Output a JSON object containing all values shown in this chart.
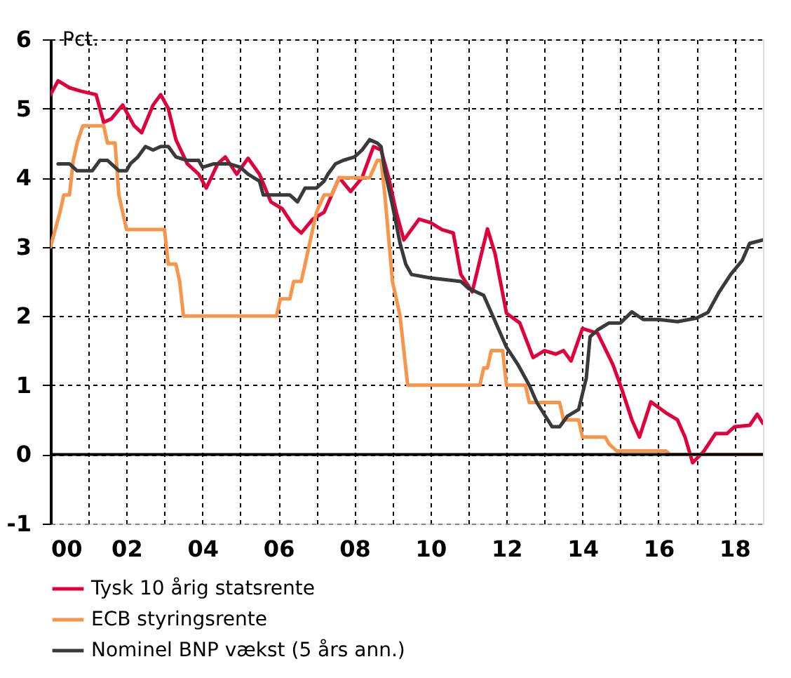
{
  "chart_data": {
    "type": "line",
    "ylabel": "Pct.",
    "xlim": [
      0,
      18.75
    ],
    "ylim": [
      -1,
      6
    ],
    "xticks": [
      {
        "value": 0,
        "label": "00"
      },
      {
        "value": 1,
        "label": null
      },
      {
        "value": 2,
        "label": "02"
      },
      {
        "value": 3,
        "label": null
      },
      {
        "value": 4,
        "label": "04"
      },
      {
        "value": 5,
        "label": null
      },
      {
        "value": 6,
        "label": "06"
      },
      {
        "value": 7,
        "label": null
      },
      {
        "value": 8,
        "label": "08"
      },
      {
        "value": 9,
        "label": null
      },
      {
        "value": 10,
        "label": "10"
      },
      {
        "value": 11,
        "label": null
      },
      {
        "value": 12,
        "label": "12"
      },
      {
        "value": 13,
        "label": null
      },
      {
        "value": 14,
        "label": "14"
      },
      {
        "value": 15,
        "label": null
      },
      {
        "value": 16,
        "label": "16"
      },
      {
        "value": 17,
        "label": null
      },
      {
        "value": 18,
        "label": "18"
      }
    ],
    "yticks": [
      -1,
      0,
      1,
      2,
      3,
      4,
      5,
      6
    ],
    "grid": true,
    "legend": "bottom",
    "line_style": "solid",
    "marker": "none",
    "ref_lines": [
      {
        "axis": "y",
        "value": 0,
        "label": null,
        "color": "#000000",
        "line_style": "solid"
      }
    ],
    "series": [
      {
        "name": "Tysk 10 årig statsrente",
        "color": "#e0003c",
        "x": [
          0,
          0.2,
          0.5,
          0.8,
          1.2,
          1.4,
          1.6,
          1.9,
          2.2,
          2.4,
          2.7,
          2.9,
          3.1,
          3.3,
          3.6,
          3.9,
          4.1,
          4.4,
          4.6,
          4.9,
          5.2,
          5.5,
          5.8,
          6.1,
          6.4,
          6.6,
          6.9,
          7.2,
          7.6,
          7.9,
          8.2,
          8.5,
          8.7,
          8.9,
          9.1,
          9.3,
          9.7,
          10.0,
          10.3,
          10.6,
          10.8,
          11.1,
          11.5,
          11.7,
          12.0,
          12.35,
          12.7,
          13.0,
          13.3,
          13.5,
          13.7,
          14.0,
          14.4,
          14.8,
          15.0,
          15.3,
          15.5,
          15.8,
          16.2,
          16.5,
          16.7,
          16.9,
          17.2,
          17.5,
          17.8,
          18.0,
          18.4,
          18.6,
          18.75
        ],
        "values": [
          5.2,
          5.4,
          5.3,
          5.25,
          5.2,
          4.8,
          4.85,
          5.05,
          4.75,
          4.65,
          5.05,
          5.2,
          5.0,
          4.55,
          4.2,
          4.05,
          3.85,
          4.2,
          4.3,
          4.05,
          4.28,
          4.05,
          3.65,
          3.55,
          3.3,
          3.2,
          3.4,
          3.5,
          4.0,
          3.8,
          4.0,
          4.45,
          4.4,
          4.0,
          3.5,
          3.1,
          3.4,
          3.35,
          3.25,
          3.2,
          2.6,
          2.35,
          3.26,
          2.9,
          2.04,
          1.9,
          1.4,
          1.5,
          1.45,
          1.5,
          1.35,
          1.82,
          1.75,
          1.3,
          1.0,
          0.5,
          0.25,
          0.76,
          0.6,
          0.5,
          0.25,
          -0.12,
          0.05,
          0.3,
          0.3,
          0.4,
          0.42,
          0.58,
          0.45
        ]
      },
      {
        "name": "ECB styringsrente",
        "color": "#f7964a",
        "x": [
          0,
          0.25,
          0.35,
          0.5,
          0.6,
          0.7,
          0.85,
          1.4,
          1.5,
          1.7,
          1.8,
          1.9,
          2.0,
          3.0,
          3.1,
          3.3,
          3.4,
          3.5,
          5.95,
          6.05,
          6.3,
          6.4,
          6.6,
          6.7,
          6.8,
          6.9,
          7.0,
          7.2,
          7.4,
          7.6,
          8.4,
          8.6,
          8.7,
          8.8,
          9.0,
          9.2,
          9.3,
          9.4,
          11.3,
          11.4,
          11.5,
          11.6,
          11.9,
          12.0,
          12.5,
          12.6,
          13.4,
          13.5,
          13.9,
          14.0,
          14.6,
          14.7,
          14.9,
          16.2,
          16.3,
          18.75
        ],
        "values": [
          3.0,
          3.5,
          3.75,
          3.75,
          4.25,
          4.5,
          4.75,
          4.75,
          4.5,
          4.5,
          3.75,
          3.5,
          3.25,
          3.25,
          2.75,
          2.75,
          2.5,
          2.0,
          2.0,
          2.25,
          2.25,
          2.5,
          2.5,
          2.75,
          3.0,
          3.25,
          3.5,
          3.75,
          3.75,
          4.0,
          4.0,
          4.25,
          4.25,
          3.75,
          2.5,
          2.0,
          1.5,
          1.0,
          1.0,
          1.25,
          1.25,
          1.5,
          1.5,
          1.0,
          1.0,
          0.75,
          0.75,
          0.5,
          0.5,
          0.25,
          0.25,
          0.15,
          0.05,
          0.05,
          0.0,
          0.0
        ]
      },
      {
        "name": "Nominel BNP vækst (5 års ann.)",
        "color": "#3a3a3a",
        "x": [
          0.2,
          0.5,
          0.6,
          0.7,
          1.1,
          1.3,
          1.5,
          1.6,
          1.8,
          2.0,
          2.1,
          2.3,
          2.5,
          2.7,
          2.9,
          3.1,
          3.3,
          3.6,
          3.9,
          4.0,
          4.3,
          4.7,
          5.0,
          5.2,
          5.5,
          5.6,
          6.3,
          6.4,
          6.5,
          6.7,
          7.0,
          7.2,
          7.3,
          7.5,
          7.7,
          8.0,
          8.2,
          8.4,
          8.6,
          8.7,
          8.8,
          9.0,
          9.2,
          9.35,
          9.5,
          10.0,
          10.8,
          11.0,
          11.4,
          11.6,
          12.0,
          12.3,
          12.6,
          12.8,
          13.2,
          13.4,
          13.6,
          13.9,
          14.1,
          14.2,
          14.4,
          14.7,
          15.0,
          15.3,
          15.6,
          16.0,
          16.5,
          17.0,
          17.3,
          17.6,
          17.9,
          18.2,
          18.4,
          18.75
        ],
        "values": [
          4.2,
          4.2,
          4.15,
          4.1,
          4.1,
          4.25,
          4.25,
          4.2,
          4.1,
          4.1,
          4.2,
          4.3,
          4.45,
          4.4,
          4.45,
          4.45,
          4.3,
          4.25,
          4.25,
          4.15,
          4.2,
          4.2,
          4.15,
          4.05,
          3.95,
          3.75,
          3.75,
          3.7,
          3.65,
          3.85,
          3.85,
          3.95,
          4.05,
          4.2,
          4.25,
          4.3,
          4.4,
          4.55,
          4.5,
          4.45,
          4.1,
          3.6,
          3.05,
          2.75,
          2.6,
          2.55,
          2.5,
          2.4,
          2.3,
          2.05,
          1.55,
          1.3,
          1.0,
          0.75,
          0.4,
          0.4,
          0.55,
          0.65,
          1.1,
          1.7,
          1.8,
          1.9,
          1.9,
          2.06,
          1.95,
          1.95,
          1.92,
          1.97,
          2.05,
          2.35,
          2.6,
          2.8,
          3.05,
          3.1
        ]
      }
    ]
  }
}
